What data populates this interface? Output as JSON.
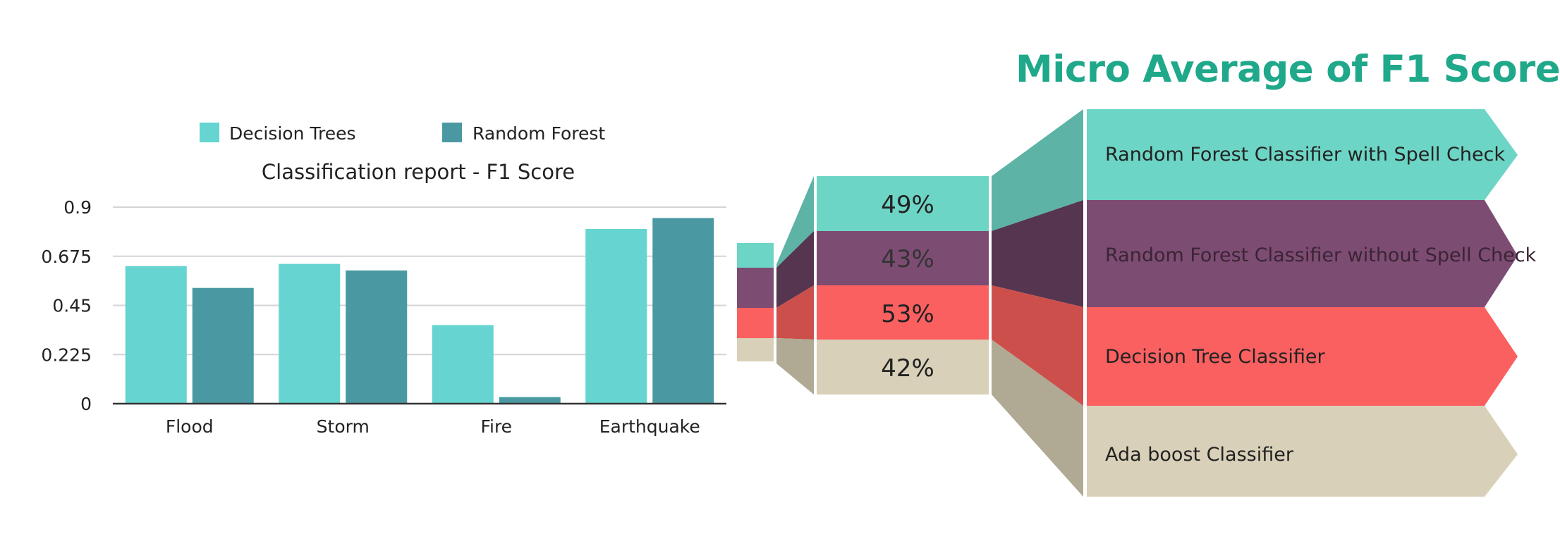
{
  "chart_data": [
    {
      "type": "bar",
      "title": "Classification report - F1 Score",
      "categories": [
        "Flood",
        "Storm",
        "Fire",
        "Earthquake"
      ],
      "series": [
        {
          "name": "Decision Trees",
          "color": "#66d4d0",
          "values": [
            0.63,
            0.64,
            0.36,
            0.8
          ]
        },
        {
          "name": "Random Forest",
          "color": "#4a99a2",
          "values": [
            0.53,
            0.61,
            0.03,
            0.85
          ]
        }
      ],
      "yticks": [
        "0.9",
        "0.675",
        "0.45",
        "0.225",
        "0"
      ],
      "ylim": [
        0,
        0.9
      ],
      "grid": true,
      "legend_position": "top"
    },
    {
      "type": "bar",
      "title": "Micro Average of F1 Score",
      "categories": [
        "Random Forest Classifier with Spell Check",
        "Random Forest Classifier without Spell Check",
        "Decision Tree Classifier",
        "Ada boost Classifier"
      ],
      "values": [
        49,
        43,
        53,
        42
      ],
      "value_labels": [
        "49%",
        "43%",
        "53%",
        "42%"
      ],
      "colors": [
        "#6dd5c5",
        "#7d4c72",
        "#fa6060",
        "#d8d0b8"
      ]
    }
  ]
}
